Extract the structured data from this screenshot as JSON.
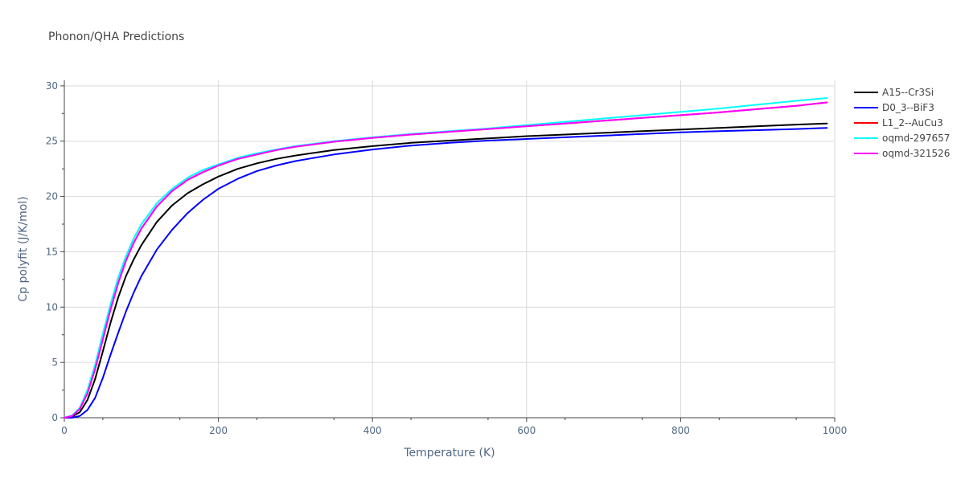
{
  "chart_data": {
    "type": "line",
    "title": "Phonon/QHA Predictions",
    "xlabel": "Temperature (K)",
    "ylabel": "Cp polyfit (J/K/mol)",
    "xlim": [
      0,
      1000
    ],
    "ylim": [
      0,
      30.5
    ],
    "x_ticks": [
      0,
      200,
      400,
      600,
      800,
      1000
    ],
    "y_ticks": [
      0,
      5,
      10,
      15,
      20,
      25,
      30
    ],
    "grid": true,
    "legend_position": "right",
    "series": [
      {
        "name": "A15--Cr3Si",
        "color": "#000000",
        "x": [
          0,
          10,
          20,
          30,
          40,
          50,
          60,
          70,
          80,
          90,
          100,
          120,
          140,
          160,
          180,
          200,
          225,
          250,
          275,
          300,
          350,
          400,
          450,
          500,
          550,
          600,
          650,
          700,
          750,
          800,
          850,
          900,
          950,
          990
        ],
        "y": [
          0,
          0.1,
          0.5,
          1.6,
          3.5,
          6.0,
          8.6,
          10.9,
          12.8,
          14.3,
          15.6,
          17.7,
          19.2,
          20.3,
          21.1,
          21.8,
          22.5,
          23.0,
          23.4,
          23.7,
          24.2,
          24.55,
          24.85,
          25.05,
          25.25,
          25.45,
          25.6,
          25.75,
          25.9,
          26.05,
          26.2,
          26.35,
          26.5,
          26.6
        ]
      },
      {
        "name": "D0_3--BiF3",
        "color": "#0000ff",
        "x": [
          0,
          10,
          20,
          30,
          40,
          50,
          60,
          70,
          80,
          90,
          100,
          120,
          140,
          160,
          180,
          200,
          225,
          250,
          275,
          300,
          350,
          400,
          450,
          500,
          550,
          600,
          650,
          700,
          750,
          800,
          850,
          900,
          950,
          990
        ],
        "y": [
          0,
          0,
          0.15,
          0.7,
          1.8,
          3.6,
          5.7,
          7.7,
          9.6,
          11.3,
          12.8,
          15.2,
          17.0,
          18.5,
          19.7,
          20.7,
          21.6,
          22.3,
          22.8,
          23.2,
          23.8,
          24.25,
          24.6,
          24.85,
          25.05,
          25.2,
          25.35,
          25.5,
          25.65,
          25.8,
          25.9,
          26.0,
          26.1,
          26.2
        ]
      },
      {
        "name": "L1_2--AuCu3",
        "color": "#ff0000",
        "x": [
          0,
          10,
          20,
          30,
          40,
          50,
          60,
          70,
          80,
          90,
          100,
          120,
          140,
          160,
          180,
          200,
          225,
          250,
          275,
          300,
          350,
          400,
          450,
          500,
          550,
          600,
          650,
          700,
          750,
          800,
          850,
          900,
          950,
          990
        ],
        "y": [
          0,
          0.15,
          0.8,
          2.2,
          4.4,
          7.1,
          9.8,
          12.2,
          14.2,
          15.8,
          17.1,
          19.1,
          20.5,
          21.5,
          22.2,
          22.8,
          23.4,
          23.8,
          24.2,
          24.5,
          24.95,
          25.3,
          25.6,
          25.85,
          26.1,
          26.35,
          26.6,
          26.85,
          27.1,
          27.35,
          27.6,
          27.9,
          28.2,
          28.5
        ]
      },
      {
        "name": "oqmd-297657",
        "color": "#00ffff",
        "x": [
          0,
          10,
          20,
          30,
          40,
          50,
          60,
          70,
          80,
          90,
          100,
          120,
          140,
          160,
          180,
          200,
          225,
          250,
          275,
          300,
          350,
          400,
          450,
          500,
          550,
          600,
          650,
          700,
          750,
          800,
          850,
          900,
          950,
          990
        ],
        "y": [
          0,
          0.2,
          0.9,
          2.5,
          4.8,
          7.6,
          10.3,
          12.7,
          14.6,
          16.2,
          17.5,
          19.4,
          20.7,
          21.7,
          22.4,
          22.9,
          23.5,
          23.9,
          24.25,
          24.55,
          25.0,
          25.35,
          25.65,
          25.9,
          26.15,
          26.45,
          26.75,
          27.05,
          27.35,
          27.65,
          27.95,
          28.3,
          28.65,
          28.9
        ]
      },
      {
        "name": "oqmd-321526",
        "color": "#ff00ff",
        "x": [
          0,
          10,
          20,
          30,
          40,
          50,
          60,
          70,
          80,
          90,
          100,
          120,
          140,
          160,
          180,
          200,
          225,
          250,
          275,
          300,
          350,
          400,
          450,
          500,
          550,
          600,
          650,
          700,
          750,
          800,
          850,
          900,
          950,
          990
        ],
        "y": [
          0,
          0.15,
          0.8,
          2.2,
          4.4,
          7.1,
          9.8,
          12.2,
          14.2,
          15.8,
          17.1,
          19.1,
          20.5,
          21.5,
          22.2,
          22.8,
          23.4,
          23.8,
          24.2,
          24.5,
          24.95,
          25.3,
          25.6,
          25.85,
          26.1,
          26.35,
          26.6,
          26.85,
          27.1,
          27.35,
          27.6,
          27.9,
          28.2,
          28.5
        ]
      }
    ]
  }
}
